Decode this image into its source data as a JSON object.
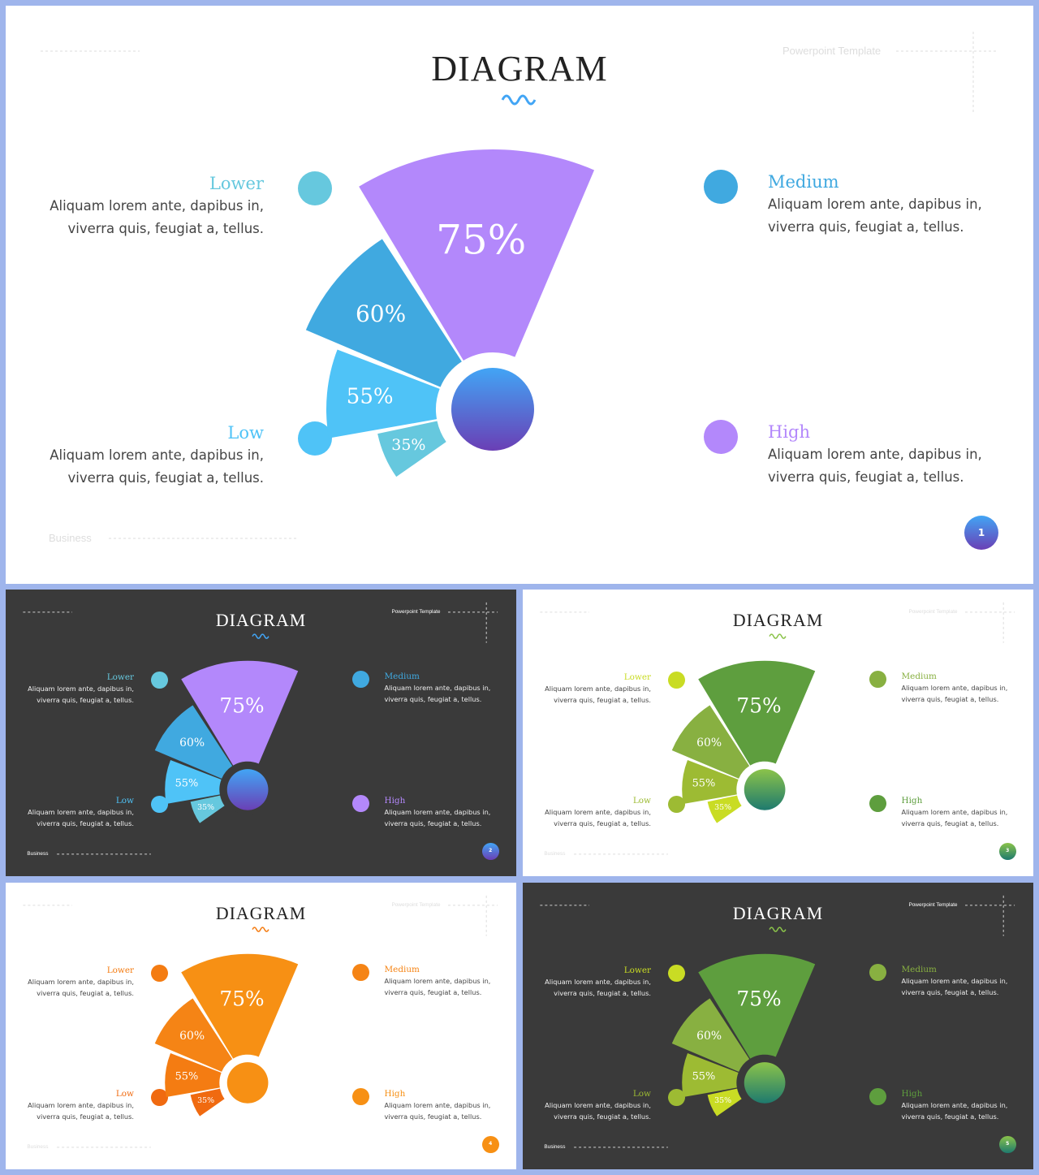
{
  "common": {
    "title": "DIAGRAM",
    "top_right_label": "Powerpoint Template",
    "bottom_left_label": "Business",
    "items": [
      {
        "key": "lower",
        "label": "Lower",
        "text1": "Aliquam lorem ante, dapibus in,",
        "text2": "viverra quis, feugiat a, tellus."
      },
      {
        "key": "medium",
        "label": "Medium",
        "text1": "Aliquam lorem ante, dapibus in,",
        "text2": "viverra quis, feugiat a, tellus."
      },
      {
        "key": "low",
        "label": "Low",
        "text1": "Aliquam lorem ante, dapibus in,",
        "text2": "viverra quis, feugiat a, tellus."
      },
      {
        "key": "high",
        "label": "High",
        "text1": "Aliquam lorem ante, dapibus in,",
        "text2": "viverra quis, feugiat a, tellus."
      }
    ],
    "segments": [
      {
        "label": "35%",
        "value": 35
      },
      {
        "label": "55%",
        "value": 55
      },
      {
        "label": "60%",
        "value": 60
      },
      {
        "label": "75%",
        "value": 75
      }
    ]
  },
  "slides": [
    {
      "page": "1",
      "theme": "light",
      "seg_colors": [
        "#66c8de",
        "#4fc3f7",
        "#40a9e0",
        "#b388fb"
      ],
      "item_colors": {
        "lower": "#66c8de",
        "medium": "#40a9e0",
        "low": "#4fc3f7",
        "high": "#b388fb"
      },
      "hub": [
        "#42a5f5",
        "#6a3fb5"
      ],
      "wave": "#42a5f5"
    },
    {
      "page": "2",
      "theme": "dark",
      "seg_colors": [
        "#66c8de",
        "#4fc3f7",
        "#40a9e0",
        "#b388fb"
      ],
      "item_colors": {
        "lower": "#66c8de",
        "medium": "#40a9e0",
        "low": "#4fc3f7",
        "high": "#b388fb"
      },
      "hub": [
        "#42a5f5",
        "#6a3fb5"
      ],
      "wave": "#42a5f5"
    },
    {
      "page": "3",
      "theme": "light",
      "seg_colors": [
        "#c9dc24",
        "#9dbb33",
        "#88b041",
        "#5e9e3e"
      ],
      "item_colors": {
        "lower": "#c9dc24",
        "medium": "#88b041",
        "low": "#9dbb33",
        "high": "#5e9e3e"
      },
      "hub": [
        "#8bc34a",
        "#1e7a6e"
      ],
      "wave": "#8bc34a"
    },
    {
      "page": "4",
      "theme": "light",
      "seg_colors": [
        "#f06a10",
        "#f47c12",
        "#f58415",
        "#f79014"
      ],
      "item_colors": {
        "lower": "#f47c12",
        "medium": "#f58415",
        "low": "#f06a10",
        "high": "#f79014"
      },
      "hub": [
        "#f79014",
        "#f79014"
      ],
      "wave": "#f47c12"
    },
    {
      "page": "5",
      "theme": "dark",
      "seg_colors": [
        "#c9dc24",
        "#9dbb33",
        "#88b041",
        "#5e9e3e"
      ],
      "item_colors": {
        "lower": "#c9dc24",
        "medium": "#88b041",
        "low": "#9dbb33",
        "high": "#5e9e3e"
      },
      "hub": [
        "#8bc34a",
        "#1e7a6e"
      ],
      "wave": "#8bc34a"
    }
  ]
}
